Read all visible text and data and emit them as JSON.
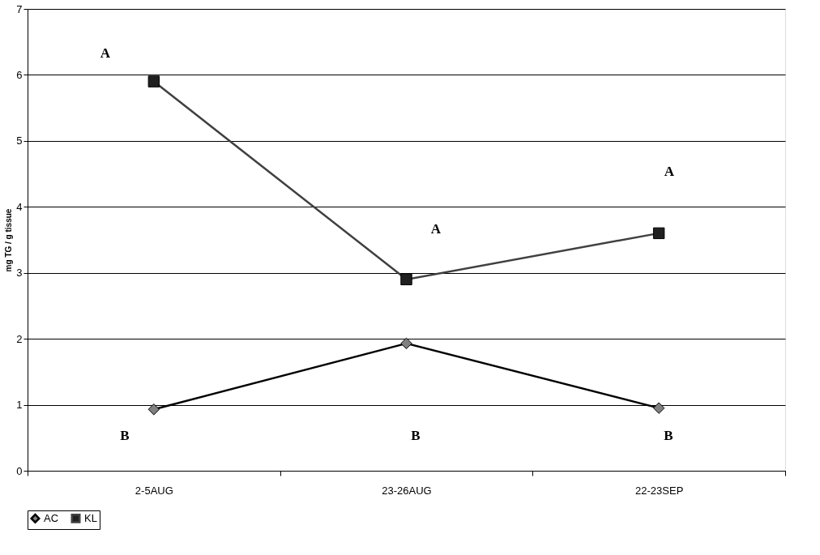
{
  "chart_data": {
    "type": "line",
    "ylabel": "mg TG / g tissue",
    "categories": [
      "2-5AUG",
      "23-26AUG",
      "22-23SEP"
    ],
    "series": [
      {
        "name": "AC",
        "color": "#000000",
        "marker": "diamond",
        "values": [
          0.93,
          1.93,
          0.95
        ]
      },
      {
        "name": "KL",
        "color": "#404040",
        "marker": "square",
        "values": [
          5.9,
          2.9,
          3.6
        ]
      }
    ],
    "ylim": [
      0,
      7
    ],
    "yticks": [
      0,
      1,
      2,
      3,
      4,
      5,
      6,
      7
    ],
    "grid": "y",
    "legend": "bottom",
    "annotations": [
      "A",
      "A",
      "A",
      "B",
      "B",
      "B"
    ]
  }
}
